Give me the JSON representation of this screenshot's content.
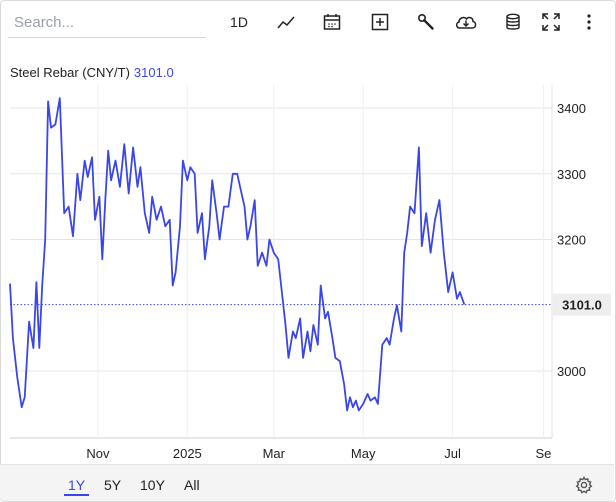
{
  "search": {
    "placeholder": "Search..."
  },
  "toolbar": {
    "range_label": "1D",
    "icons": [
      "line-chart-icon",
      "calendar-icon",
      "plus-box-icon",
      "wrench-icon",
      "cloud-download-icon",
      "database-icon",
      "fullscreen-icon",
      "more-vertical-icon"
    ]
  },
  "legend": {
    "name": "Steel Rebar (CNY/T)",
    "value": "3101.0"
  },
  "colors": {
    "line": "#3a46e8",
    "grid": "#e6e6e6",
    "current_label_bg": "#eeeeee"
  },
  "ranges": [
    {
      "label": "1Y",
      "active": true
    },
    {
      "label": "5Y",
      "active": false
    },
    {
      "label": "10Y",
      "active": false
    },
    {
      "label": "All",
      "active": false
    }
  ],
  "chart_data": {
    "type": "line",
    "title": "",
    "xlabel": "",
    "ylabel": "",
    "y_ticks": [
      "3400",
      "3300",
      "3200",
      "3000"
    ],
    "y_range": [
      2950,
      3440
    ],
    "x_ticks": [
      "Nov",
      "2025",
      "Mar",
      "May",
      "Jul",
      "Se"
    ],
    "x_range": [
      "2024-09-02",
      "2025-08-31"
    ],
    "current_value": "3101.0",
    "grid": true,
    "series": [
      {
        "points": [
          [
            "2024-09-02",
            3133
          ],
          [
            "2024-09-04",
            3050
          ],
          [
            "2024-09-07",
            2990
          ],
          [
            "2024-09-10",
            2945
          ],
          [
            "2024-09-12",
            2960
          ],
          [
            "2024-09-15",
            3075
          ],
          [
            "2024-09-18",
            3035
          ],
          [
            "2024-09-20",
            3135
          ],
          [
            "2024-09-22",
            3035
          ],
          [
            "2024-09-24",
            3130
          ],
          [
            "2024-09-26",
            3200
          ],
          [
            "2024-09-28",
            3410
          ],
          [
            "2024-09-30",
            3370
          ],
          [
            "2024-10-03",
            3375
          ],
          [
            "2024-10-06",
            3415
          ],
          [
            "2024-10-09",
            3240
          ],
          [
            "2024-10-12",
            3250
          ],
          [
            "2024-10-15",
            3205
          ],
          [
            "2024-10-18",
            3300
          ],
          [
            "2024-10-20",
            3260
          ],
          [
            "2024-10-23",
            3320
          ],
          [
            "2024-10-25",
            3295
          ],
          [
            "2024-10-28",
            3325
          ],
          [
            "2024-10-30",
            3230
          ],
          [
            "2024-11-02",
            3265
          ],
          [
            "2024-11-04",
            3170
          ],
          [
            "2024-11-06",
            3260
          ],
          [
            "2024-11-08",
            3335
          ],
          [
            "2024-11-10",
            3290
          ],
          [
            "2024-11-13",
            3320
          ],
          [
            "2024-11-16",
            3280
          ],
          [
            "2024-11-19",
            3345
          ],
          [
            "2024-11-22",
            3270
          ],
          [
            "2024-11-25",
            3340
          ],
          [
            "2024-11-28",
            3280
          ],
          [
            "2024-11-30",
            3310
          ],
          [
            "2024-12-03",
            3240
          ],
          [
            "2024-12-06",
            3210
          ],
          [
            "2024-12-08",
            3265
          ],
          [
            "2024-12-11",
            3230
          ],
          [
            "2024-12-14",
            3250
          ],
          [
            "2024-12-17",
            3220
          ],
          [
            "2024-12-20",
            3230
          ],
          [
            "2024-12-22",
            3130
          ],
          [
            "2024-12-24",
            3150
          ],
          [
            "2024-12-27",
            3220
          ],
          [
            "2024-12-29",
            3320
          ],
          [
            "2025-01-01",
            3290
          ],
          [
            "2025-01-03",
            3310
          ],
          [
            "2025-01-06",
            3300
          ],
          [
            "2025-01-08",
            3210
          ],
          [
            "2025-01-11",
            3240
          ],
          [
            "2025-01-13",
            3170
          ],
          [
            "2025-01-16",
            3220
          ],
          [
            "2025-01-18",
            3290
          ],
          [
            "2025-01-21",
            3240
          ],
          [
            "2025-01-23",
            3200
          ],
          [
            "2025-01-26",
            3250
          ],
          [
            "2025-01-29",
            3250
          ],
          [
            "2025-02-01",
            3300
          ],
          [
            "2025-02-04",
            3300
          ],
          [
            "2025-02-06",
            3280
          ],
          [
            "2025-02-09",
            3250
          ],
          [
            "2025-02-11",
            3200
          ],
          [
            "2025-02-13",
            3220
          ],
          [
            "2025-02-16",
            3260
          ],
          [
            "2025-02-18",
            3160
          ],
          [
            "2025-02-21",
            3180
          ],
          [
            "2025-02-24",
            3160
          ],
          [
            "2025-02-26",
            3200
          ],
          [
            "2025-03-01",
            3180
          ],
          [
            "2025-03-04",
            3170
          ],
          [
            "2025-03-07",
            3110
          ],
          [
            "2025-03-09",
            3070
          ],
          [
            "2025-03-11",
            3020
          ],
          [
            "2025-03-14",
            3060
          ],
          [
            "2025-03-16",
            3050
          ],
          [
            "2025-03-19",
            3080
          ],
          [
            "2025-03-21",
            3020
          ],
          [
            "2025-03-24",
            3060
          ],
          [
            "2025-03-26",
            3030
          ],
          [
            "2025-03-28",
            3070
          ],
          [
            "2025-03-31",
            3040
          ],
          [
            "2025-04-02",
            3130
          ],
          [
            "2025-04-05",
            3080
          ],
          [
            "2025-04-07",
            3090
          ],
          [
            "2025-04-10",
            3050
          ],
          [
            "2025-04-12",
            3020
          ],
          [
            "2025-04-15",
            3015
          ],
          [
            "2025-04-18",
            2980
          ],
          [
            "2025-04-20",
            2940
          ],
          [
            "2025-04-22",
            2960
          ],
          [
            "2025-04-24",
            2945
          ],
          [
            "2025-04-26",
            2955
          ],
          [
            "2025-04-28",
            2940
          ],
          [
            "2025-05-01",
            2950
          ],
          [
            "2025-05-04",
            2965
          ],
          [
            "2025-05-06",
            2955
          ],
          [
            "2025-05-09",
            2960
          ],
          [
            "2025-05-11",
            2950
          ],
          [
            "2025-05-14",
            3040
          ],
          [
            "2025-05-17",
            3050
          ],
          [
            "2025-05-19",
            3040
          ],
          [
            "2025-05-22",
            3080
          ],
          [
            "2025-05-24",
            3100
          ],
          [
            "2025-05-27",
            3060
          ],
          [
            "2025-05-29",
            3180
          ],
          [
            "2025-05-31",
            3210
          ],
          [
            "2025-06-02",
            3250
          ],
          [
            "2025-06-05",
            3240
          ],
          [
            "2025-06-08",
            3340
          ],
          [
            "2025-06-10",
            3190
          ],
          [
            "2025-06-13",
            3240
          ],
          [
            "2025-06-16",
            3180
          ],
          [
            "2025-06-19",
            3230
          ],
          [
            "2025-06-22",
            3260
          ],
          [
            "2025-06-25",
            3180
          ],
          [
            "2025-06-28",
            3120
          ],
          [
            "2025-07-01",
            3150
          ],
          [
            "2025-07-04",
            3110
          ],
          [
            "2025-07-06",
            3120
          ],
          [
            "2025-07-09",
            3101
          ]
        ]
      }
    ]
  }
}
